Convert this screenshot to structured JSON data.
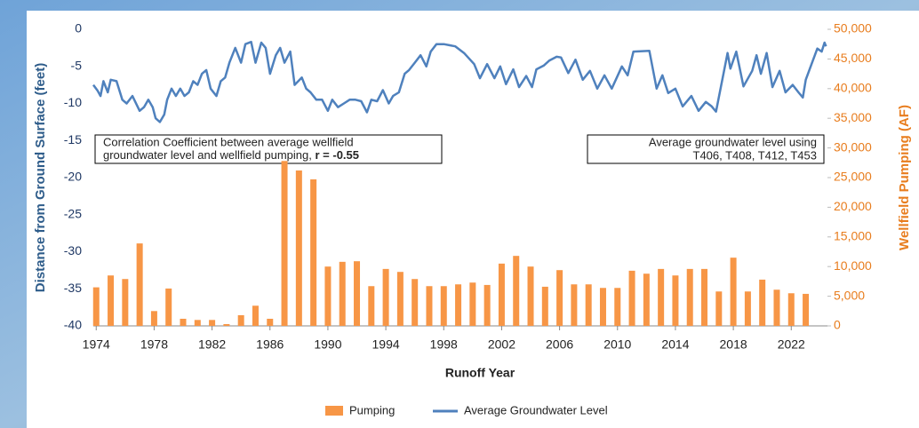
{
  "chart_data": {
    "type": "combo",
    "x_label": "Runoff Year",
    "y_label": "Distance from Ground Surface (feet)",
    "y2_label": "Wellfield Pumping (AF)",
    "xlim": [
      1973.8,
      2024.5
    ],
    "xticks": [
      1974,
      1978,
      1982,
      1986,
      1990,
      1994,
      1998,
      2002,
      2006,
      2010,
      2014,
      2018,
      2022
    ],
    "ylim": [
      -40,
      0
    ],
    "yticks": [
      0,
      -5,
      -10,
      -15,
      -20,
      -25,
      -30,
      -35,
      -40
    ],
    "y2lim": [
      0,
      50000
    ],
    "y2ticks": [
      {
        "value": 50000,
        "label": "50,000"
      },
      {
        "value": 45000,
        "label": "45,000"
      },
      {
        "value": 40000,
        "label": "40,000"
      },
      {
        "value": 35000,
        "label": "35,000"
      },
      {
        "value": 30000,
        "label": "30,000"
      },
      {
        "value": 25000,
        "label": "25,000"
      },
      {
        "value": 20000,
        "label": "20,000"
      },
      {
        "value": 15000,
        "label": "15,000"
      },
      {
        "value": 10000,
        "label": "10,000"
      },
      {
        "value": 5000,
        "label": "5,000"
      },
      {
        "value": 0,
        "label": "0"
      }
    ],
    "annotations": [
      {
        "lines": [
          "Correlation Coefficient between average wellfield",
          "groundwater level and wellfield pumping, "
        ],
        "bold": "r = -0.55"
      },
      {
        "lines": [
          "Average groundwater level using",
          "T406, T408, T412, T453"
        ]
      }
    ],
    "series": [
      {
        "name": "Pumping",
        "type": "bar",
        "axis": "y2",
        "color": "#f79646",
        "x": [
          1974,
          1975,
          1976,
          1977,
          1978,
          1979,
          1980,
          1981,
          1982,
          1983,
          1984,
          1985,
          1986,
          1987,
          1988,
          1989,
          1990,
          1991,
          1992,
          1993,
          1994,
          1995,
          1996,
          1997,
          1998,
          1999,
          2000,
          2001,
          2002,
          2003,
          2004,
          2005,
          2006,
          2007,
          2008,
          2009,
          2010,
          2011,
          2012,
          2013,
          2014,
          2015,
          2016,
          2017,
          2018,
          2019,
          2020,
          2021,
          2022,
          2023
        ],
        "values": [
          6500,
          8500,
          7900,
          13900,
          2500,
          6300,
          1200,
          1000,
          1000,
          300,
          1800,
          3400,
          1200,
          27800,
          26200,
          24700,
          10000,
          10800,
          10900,
          6700,
          9600,
          9100,
          7900,
          6700,
          6700,
          7000,
          7300,
          6900,
          10500,
          11800,
          10000,
          6600,
          9400,
          7000,
          7000,
          6400,
          6400,
          9300,
          8800,
          9600,
          8500,
          9600,
          9600,
          5800,
          11500,
          5800,
          7800,
          6100,
          5500,
          5400
        ]
      },
      {
        "name": "Average Groundwater Level",
        "type": "line",
        "color": "#4f81bd",
        "x": [
          1973.8,
          1974.1,
          1974.3,
          1974.5,
          1974.8,
          1975.0,
          1975.4,
          1975.8,
          1976.1,
          1976.5,
          1977.0,
          1977.3,
          1977.6,
          1977.9,
          1978.1,
          1978.4,
          1978.7,
          1978.9,
          1979.2,
          1979.5,
          1979.8,
          1980.1,
          1980.4,
          1980.7,
          1981.0,
          1981.3,
          1981.6,
          1981.9,
          1982.3,
          1982.6,
          1982.9,
          1983.2,
          1983.6,
          1984.0,
          1984.3,
          1984.7,
          1985.0,
          1985.4,
          1985.7,
          1986.0,
          1986.4,
          1986.7,
          1987.0,
          1987.4,
          1987.7,
          1988.2,
          1988.5,
          1988.8,
          1989.2,
          1989.6,
          1990.0,
          1990.3,
          1990.7,
          1991.1,
          1991.5,
          1991.9,
          1992.3,
          1992.7,
          1993.0,
          1993.4,
          1993.8,
          1994.2,
          1994.5,
          1994.9,
          1995.3,
          1995.6,
          1996.0,
          1996.4,
          1996.8,
          1997.1,
          1997.5,
          1998.0,
          1998.8,
          1999.4,
          2000.1,
          2000.5,
          2001.0,
          2001.5,
          2001.9,
          2002.3,
          2002.8,
          2003.2,
          2003.7,
          2004.1,
          2004.4,
          2004.9,
          2005.3,
          2005.8,
          2006.1,
          2006.6,
          2007.1,
          2007.6,
          2008.1,
          2008.6,
          2009.1,
          2009.6,
          2010.3,
          2010.7,
          2011.1,
          2012.2,
          2012.7,
          2013.1,
          2013.5,
          2014.0,
          2014.5,
          2015.1,
          2015.6,
          2016.1,
          2016.5,
          2016.8,
          2017.6,
          2017.8,
          2018.2,
          2018.7,
          2019.3,
          2019.6,
          2019.9,
          2020.3,
          2020.7,
          2021.2,
          2021.6,
          2022.1,
          2022.5,
          2022.8,
          2023.0,
          2023.4,
          2023.8,
          2024.1,
          2024.3,
          2024.4
        ],
        "values": [
          -7.5,
          -8.3,
          -9,
          -7,
          -8.5,
          -6.8,
          -7,
          -9.5,
          -10,
          -9,
          -11,
          -10.5,
          -9.5,
          -10.5,
          -12,
          -12.5,
          -11.5,
          -9.5,
          -8,
          -9,
          -8,
          -9,
          -8.5,
          -7,
          -7.5,
          -6,
          -5.5,
          -8,
          -9,
          -7,
          -6.5,
          -4.5,
          -2.5,
          -4.5,
          -2,
          -1.7,
          -4.5,
          -1.8,
          -2.5,
          -6,
          -3.5,
          -2.5,
          -4.5,
          -3,
          -7.5,
          -6.5,
          -8,
          -8.5,
          -9.5,
          -9.5,
          -11,
          -9.5,
          -10.5,
          -10,
          -9.5,
          -9.5,
          -9.7,
          -11.2,
          -9.5,
          -9.7,
          -8.2,
          -10,
          -9,
          -8.5,
          -6,
          -5.5,
          -4.5,
          -3.5,
          -5,
          -3,
          -2,
          -2,
          -2.3,
          -3.2,
          -4.7,
          -6.6,
          -4.7,
          -6.6,
          -5,
          -7.4,
          -5.4,
          -7.8,
          -6.3,
          -7.8,
          -5.4,
          -4.9,
          -4.2,
          -3.7,
          -3.8,
          -5.9,
          -4.1,
          -6.8,
          -5.6,
          -8,
          -6.2,
          -8,
          -5,
          -6.2,
          -3,
          -2.9,
          -8,
          -6.2,
          -8.6,
          -8,
          -10.4,
          -9,
          -11,
          -9.8,
          -10.4,
          -11.1,
          -3.2,
          -5.3,
          -3,
          -7.7,
          -5.6,
          -3.5,
          -6,
          -3.2,
          -7.8,
          -5.6,
          -8.5,
          -7.5,
          -8.5,
          -9.2,
          -6.8,
          -4.7,
          -2.6,
          -3,
          -1.8,
          -2.3
        ]
      }
    ]
  }
}
